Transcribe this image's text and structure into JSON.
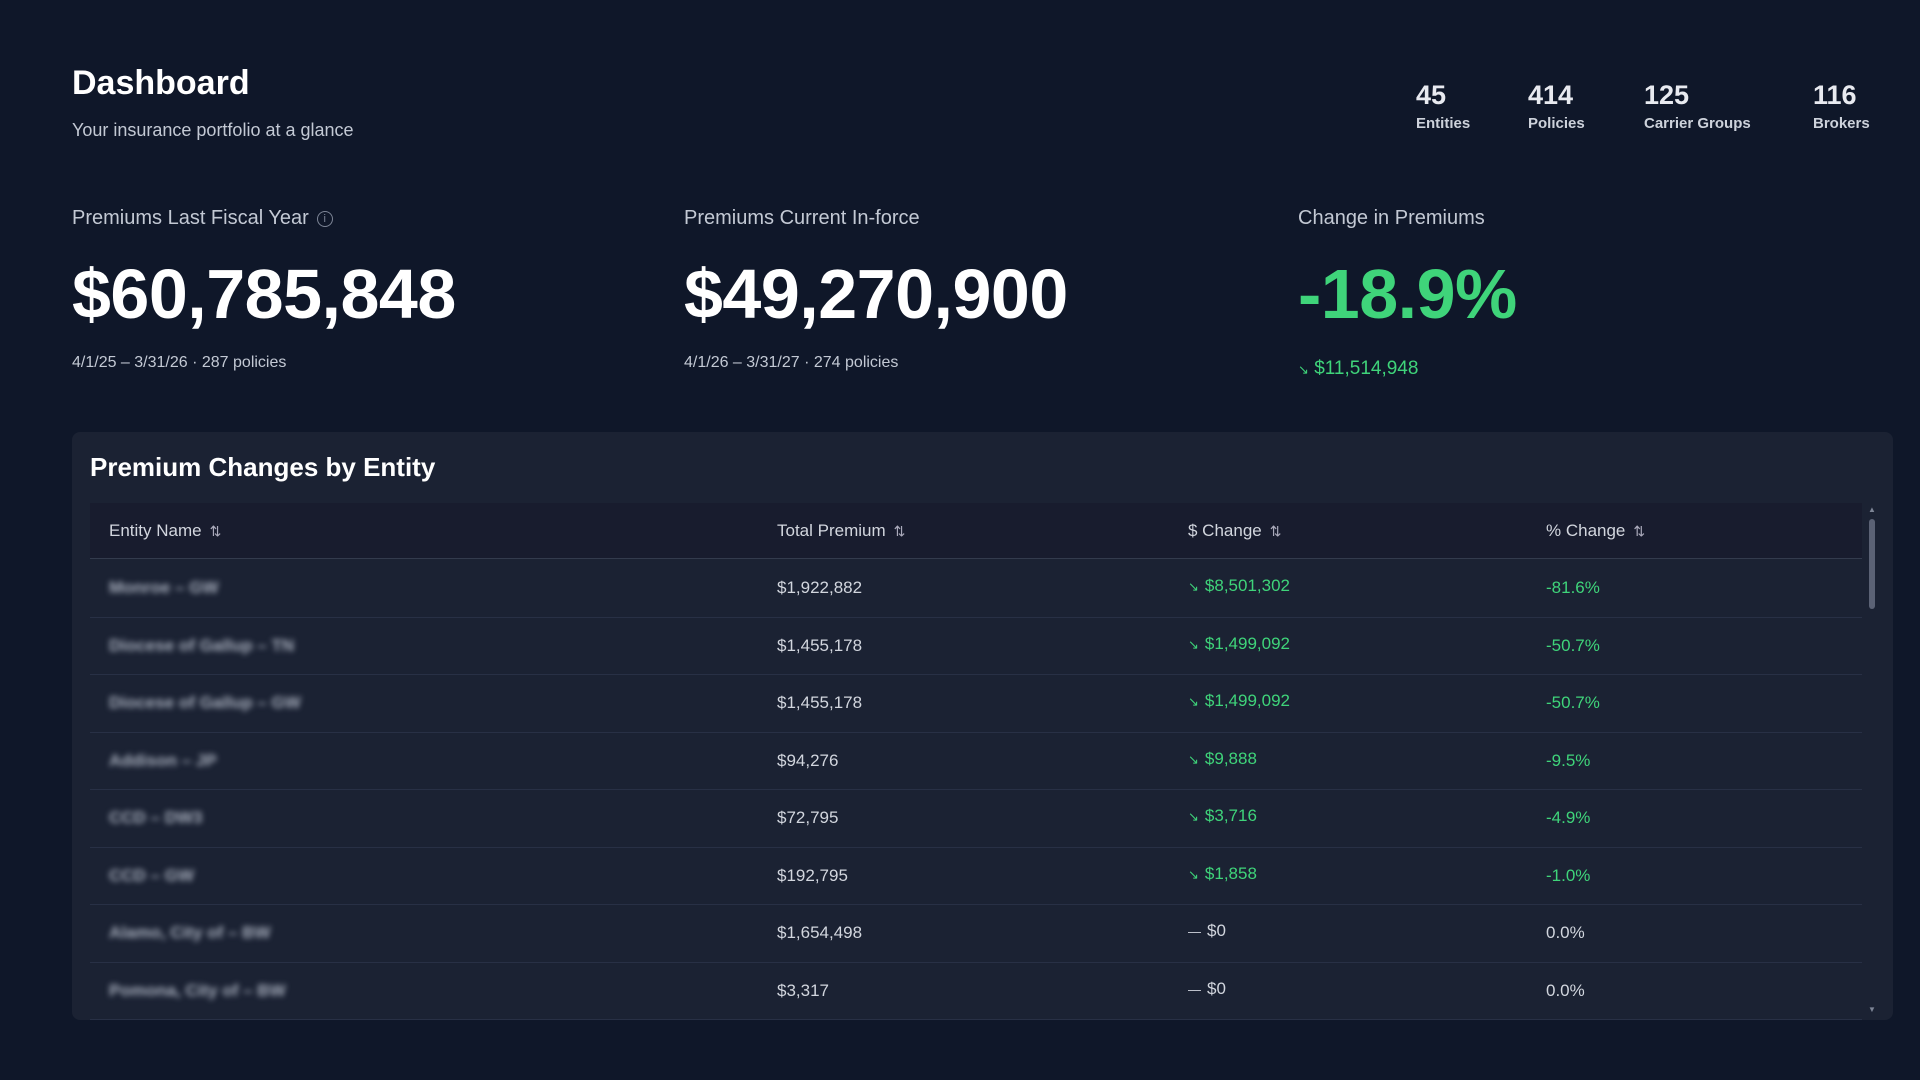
{
  "header": {
    "title": "Dashboard",
    "subtitle": "Your insurance portfolio at a glance"
  },
  "stats": [
    {
      "value": "45",
      "label": "Entities"
    },
    {
      "value": "414",
      "label": "Policies"
    },
    {
      "value": "125",
      "label": "Carrier Groups"
    },
    {
      "value": "116",
      "label": "Brokers"
    }
  ],
  "kpis": {
    "last_fy": {
      "label": "Premiums Last Fiscal Year",
      "value": "$60,785,848",
      "sub": "4/1/25 – 3/31/26 · 287 policies"
    },
    "current": {
      "label": "Premiums Current In-force",
      "value": "$49,270,900",
      "sub": "4/1/26 – 3/31/27 · 274 policies"
    },
    "change": {
      "label": "Change in Premiums",
      "value": "-18.9%",
      "sub": "$11,514,948",
      "icon": "trending-down-icon"
    }
  },
  "colors": {
    "positive": "#3fd47a",
    "background": "#0f1729",
    "card": "#1b2233"
  },
  "table": {
    "title": "Premium Changes by Entity",
    "columns": [
      "Entity Name",
      "Total Premium",
      "$ Change",
      "% Change"
    ],
    "rows": [
      {
        "entity": "Monroe – GW",
        "total": "$1,922,882",
        "change": "$8,501,302",
        "pct": "-81.6%",
        "trend": "down"
      },
      {
        "entity": "Diocese of Gallup – TN",
        "total": "$1,455,178",
        "change": "$1,499,092",
        "pct": "-50.7%",
        "trend": "down"
      },
      {
        "entity": "Diocese of Gallup – GW",
        "total": "$1,455,178",
        "change": "$1,499,092",
        "pct": "-50.7%",
        "trend": "down"
      },
      {
        "entity": "Addison – JP",
        "total": "$94,276",
        "change": "$9,888",
        "pct": "-9.5%",
        "trend": "down"
      },
      {
        "entity": "CCD – DW3",
        "total": "$72,795",
        "change": "$3,716",
        "pct": "-4.9%",
        "trend": "down"
      },
      {
        "entity": "CCD – GW",
        "total": "$192,795",
        "change": "$1,858",
        "pct": "-1.0%",
        "trend": "down"
      },
      {
        "entity": "Alamo, City of – BW",
        "total": "$1,654,498",
        "change": "$0",
        "pct": "0.0%",
        "trend": "flat"
      },
      {
        "entity": "Pomona, City of – BW",
        "total": "$3,317",
        "change": "$0",
        "pct": "0.0%",
        "trend": "flat"
      }
    ]
  }
}
